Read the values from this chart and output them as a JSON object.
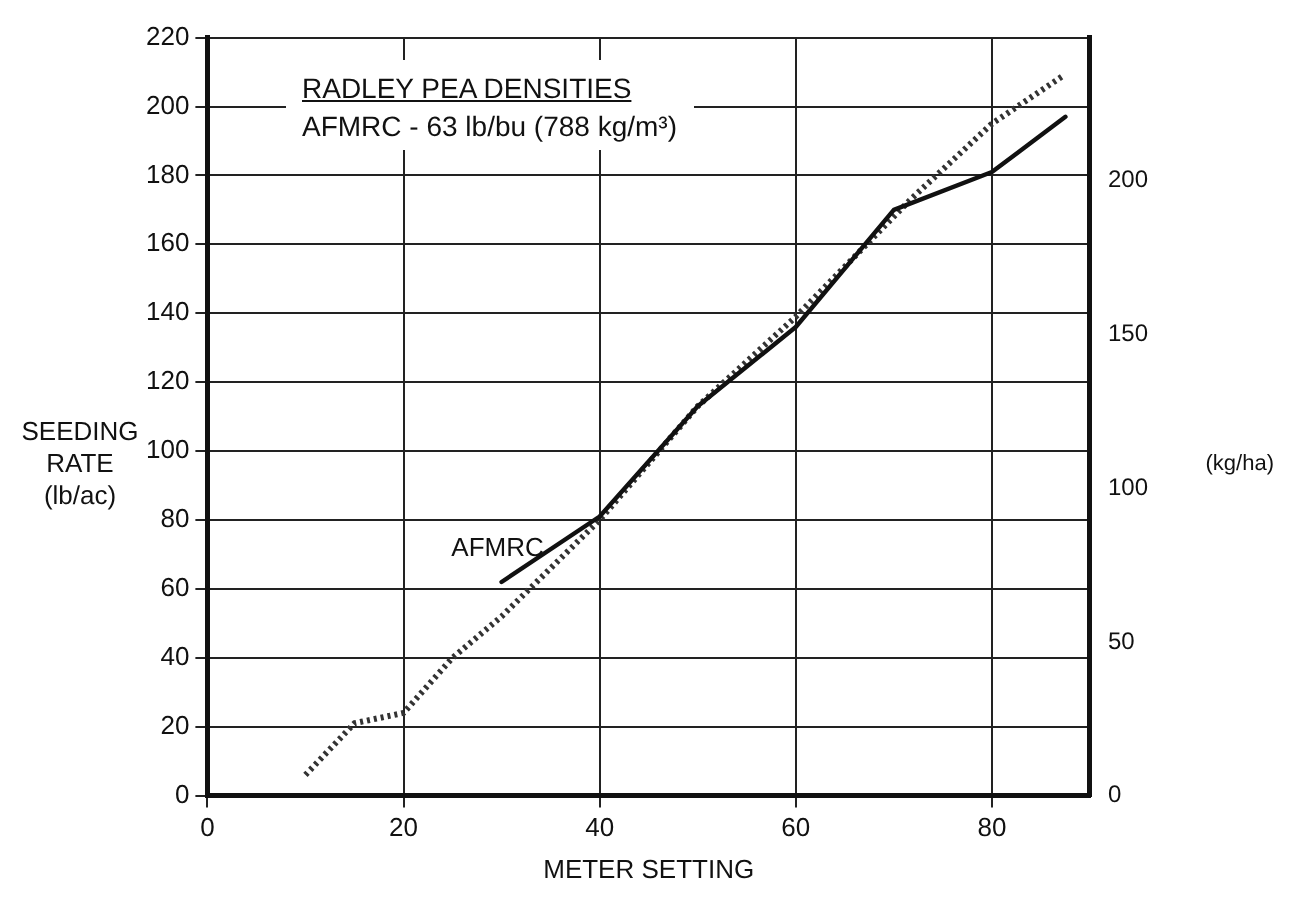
{
  "chart_data": {
    "type": "line",
    "title": "RADLEY PEA DENSITIES",
    "subtitle": "AFMRC - 63 lb/bu (788 kg/m³)",
    "xlabel": "METER SETTING",
    "ylabel": "SEEDING RATE (lb/ac)",
    "y2label": "(kg/ha)",
    "series": [
      {
        "name": "AFMRC",
        "color": "#111111",
        "line_style": "solid",
        "x": [
          30,
          40,
          50,
          60,
          70,
          80,
          87.5
        ],
        "values": [
          62,
          81,
          113,
          136,
          170,
          181,
          197
        ]
      },
      {
        "color": "#333333",
        "line_style": "dotted",
        "x": [
          10,
          15,
          20,
          25,
          30,
          40,
          50,
          60,
          71.7,
          80,
          87.3
        ],
        "values": [
          6,
          21,
          24,
          40,
          52,
          80,
          113,
          139,
          173,
          195,
          209
        ]
      }
    ],
    "xlim": [
      0,
      90
    ],
    "xticks": [
      0,
      20,
      40,
      60,
      80
    ],
    "ylim": [
      0,
      220
    ],
    "yticks": [
      0,
      20,
      40,
      60,
      80,
      100,
      120,
      140,
      160,
      180,
      200,
      220
    ],
    "y2lim": [
      0,
      246.6
    ],
    "y2ticks": [
      0,
      50,
      100,
      150,
      200
    ],
    "grid": true,
    "legend": false,
    "marker": "none"
  }
}
